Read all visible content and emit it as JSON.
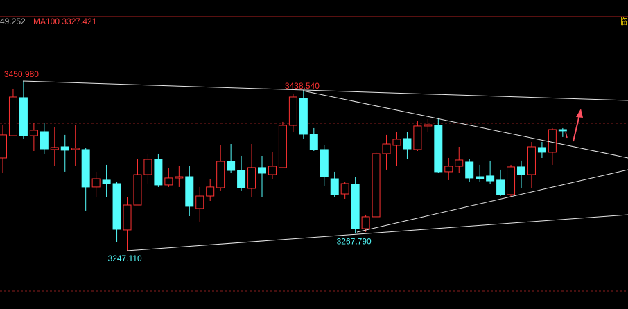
{
  "chart_data": {
    "type": "candlestick",
    "header": [
      "49.252",
      "MA100 3327.421",
      "临"
    ],
    "up_color": "#ff3232",
    "down_color": "#54fcfc",
    "ylim": [
      3177.2,
      3528.3
    ],
    "open": [
      3358.6,
      3385.2,
      3431.0,
      3385.2,
      3390.2,
      3368.6,
      3371.9,
      3368.6,
      3368.6,
      3323.7,
      3332.0,
      3327.8,
      3272.1,
      3302.0,
      3338.6,
      3356.9,
      3326.2,
      3334.5,
      3336.1,
      3297.9,
      3312.8,
      3322.8,
      3354.4,
      3343.6,
      3322.0,
      3347.0,
      3338.6,
      3347.0,
      3397.7,
      3430.2,
      3386.9,
      3368.6,
      3333.6,
      3315.3,
      3327.0,
      3273.7,
      3287.9,
      3363.6,
      3373.6,
      3381.9,
      3368.6,
      3396.9,
      3397.7,
      3342.0,
      3348.6,
      3353.6,
      3336.1,
      3337.0,
      3332.0,
      3314.5,
      3347.8,
      3338.6,
      3371.1,
      3365.3,
      3392.7
    ],
    "high": [
      3398.5,
      3441.8,
      3450.98,
      3400.2,
      3400.2,
      3396.0,
      3386.1,
      3398.5,
      3370.3,
      3342.0,
      3350.3,
      3330.3,
      3311.2,
      3356.9,
      3363.6,
      3363.6,
      3346.1,
      3348.6,
      3348.6,
      3323.7,
      3333.6,
      3373.6,
      3375.2,
      3361.1,
      3375.2,
      3361.1,
      3365.3,
      3401.9,
      3436.0,
      3438.54,
      3394.4,
      3373.6,
      3342.0,
      3330.3,
      3336.1,
      3290.4,
      3365.3,
      3386.1,
      3390.2,
      3390.2,
      3402.7,
      3405.2,
      3406.9,
      3358.6,
      3371.9,
      3356.9,
      3350.3,
      3355.3,
      3344.5,
      3350.3,
      3355.3,
      3377.7,
      3377.7,
      3394.4,
      3394.4
    ],
    "low": [
      3340.3,
      3385.2,
      3381.9,
      3366.9,
      3363.6,
      3348.6,
      3342.0,
      3348.6,
      3295.4,
      3311.2,
      3311.2,
      3257.1,
      3247.11,
      3302.0,
      3327.8,
      3323.7,
      3323.7,
      3323.7,
      3288.7,
      3282.1,
      3307.0,
      3319.5,
      3340.3,
      3319.5,
      3311.2,
      3311.2,
      3333.6,
      3347.0,
      3390.2,
      3381.9,
      3366.9,
      3325.3,
      3311.2,
      3309.5,
      3267.79,
      3269.6,
      3287.9,
      3344.5,
      3348.6,
      3356.9,
      3366.9,
      3390.2,
      3340.3,
      3332.0,
      3340.3,
      3330.3,
      3330.3,
      3327.8,
      3312.8,
      3311.2,
      3322.0,
      3322.0,
      3358.6,
      3350.3,
      3383.6
    ],
    "close": [
      3386.1,
      3431.8,
      3385.2,
      3391.9,
      3369.4,
      3371.1,
      3367.8,
      3370.3,
      3323.7,
      3333.6,
      3327.8,
      3272.9,
      3302.0,
      3338.6,
      3356.9,
      3326.2,
      3334.5,
      3336.1,
      3300.4,
      3312.8,
      3323.7,
      3354.4,
      3343.6,
      3322.8,
      3347.0,
      3340.3,
      3348.6,
      3397.7,
      3431.8,
      3386.9,
      3368.6,
      3336.1,
      3314.5,
      3327.8,
      3273.7,
      3287.9,
      3363.6,
      3375.2,
      3381.1,
      3369.4,
      3396.9,
      3398.5,
      3342.0,
      3348.6,
      3356.1,
      3334.5,
      3333.6,
      3331.1,
      3314.5,
      3347.8,
      3338.6,
      3371.9,
      3365.3,
      3392.7,
      3391.1
    ],
    "annotations": [
      "3450.980",
      "3438.540",
      "3267.790",
      "3247.110"
    ]
  }
}
